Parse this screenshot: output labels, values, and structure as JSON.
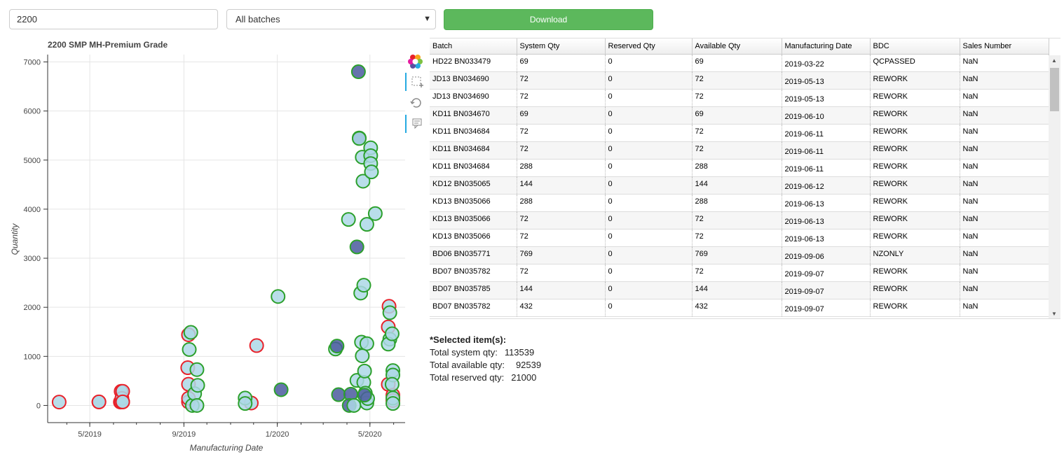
{
  "controls": {
    "search_value": "2200",
    "batch_select": "All batches",
    "download_label": "Download"
  },
  "chart_title": "2200 SMP MH-Premium Grade",
  "chart_data": {
    "type": "scatter",
    "title": "2200 SMP MH-Premium Grade",
    "xlabel": "Manufacturing Date",
    "ylabel": "Quantity",
    "x_ticks": [
      "5/2019",
      "9/2019",
      "1/2020",
      "5/2020"
    ],
    "y_ticks": [
      0,
      1000,
      2000,
      3000,
      4000,
      5000,
      6000,
      7000
    ],
    "xlim": [
      "2019-03-07",
      "2020-06-16"
    ],
    "ylim": [
      -350,
      7150
    ],
    "grid": true,
    "series": [
      {
        "style": "red",
        "points": [
          [
            "2019-03-22",
            69
          ],
          [
            "2019-05-13",
            72
          ],
          [
            "2019-05-13",
            72
          ],
          [
            "2019-06-10",
            69
          ],
          [
            "2019-06-11",
            72
          ],
          [
            "2019-06-11",
            72
          ],
          [
            "2019-06-11",
            288
          ],
          [
            "2019-06-12",
            144
          ],
          [
            "2019-06-13",
            288
          ],
          [
            "2019-06-13",
            72
          ],
          [
            "2019-06-13",
            72
          ],
          [
            "2019-09-06",
            769
          ],
          [
            "2019-09-07",
            72
          ],
          [
            "2019-09-07",
            144
          ],
          [
            "2019-09-07",
            432
          ],
          [
            "2019-09-07",
            1440
          ],
          [
            "2019-11-28",
            50
          ],
          [
            "2019-12-05",
            1220
          ],
          [
            "2020-05-26",
            2020
          ],
          [
            "2020-05-25",
            1600
          ],
          [
            "2020-05-25",
            430
          ],
          [
            "2020-05-31",
            210
          ],
          [
            "2020-05-31",
            100
          ]
        ]
      },
      {
        "style": "green",
        "points": [
          [
            "2019-09-10",
            1490
          ],
          [
            "2019-09-08",
            1140
          ],
          [
            "2019-09-12",
            0
          ],
          [
            "2019-09-15",
            240
          ],
          [
            "2019-09-18",
            730
          ],
          [
            "2019-09-19",
            410
          ],
          [
            "2019-09-18",
            0
          ],
          [
            "2019-11-20",
            150
          ],
          [
            "2019-11-20",
            40
          ],
          [
            "2020-01-02",
            2220
          ],
          [
            "2020-03-17",
            1150
          ],
          [
            "2020-04-03",
            3790
          ],
          [
            "2020-04-14",
            510
          ],
          [
            "2020-04-19",
            2290
          ],
          [
            "2020-04-20",
            1290
          ],
          [
            "2020-04-21",
            5060
          ],
          [
            "2020-04-22",
            4570
          ],
          [
            "2020-04-23",
            2450
          ],
          [
            "2020-04-23",
            470
          ],
          [
            "2020-04-24",
            700
          ],
          [
            "2020-04-25",
            250
          ],
          [
            "2020-04-27",
            3690
          ],
          [
            "2020-04-27",
            1260
          ],
          [
            "2020-04-27",
            50
          ],
          [
            "2020-04-28",
            140
          ],
          [
            "2020-04-21",
            1010
          ],
          [
            "2020-05-02",
            5250
          ],
          [
            "2020-05-02",
            5090
          ],
          [
            "2020-05-02",
            4930
          ],
          [
            "2020-05-03",
            4760
          ],
          [
            "2020-05-08",
            3910
          ],
          [
            "2020-05-27",
            1890
          ],
          [
            "2020-05-27",
            1350
          ],
          [
            "2020-05-25",
            1250
          ],
          [
            "2020-05-30",
            1460
          ],
          [
            "2020-05-31",
            710
          ],
          [
            "2020-05-31",
            620
          ],
          [
            "2020-05-30",
            430
          ],
          [
            "2020-05-31",
            150
          ],
          [
            "2020-05-31",
            40
          ]
        ]
      },
      {
        "style": "selected",
        "points": [
          [
            "2020-04-16",
            6800
          ],
          [
            "2020-04-17",
            5450
          ],
          [
            "2020-04-14",
            3230
          ],
          [
            "2020-03-19",
            1210
          ],
          [
            "2020-01-06",
            320
          ],
          [
            "2020-03-21",
            220
          ],
          [
            "2020-04-06",
            230
          ],
          [
            "2020-04-04",
            0
          ],
          [
            "2020-04-24",
            210
          ]
        ]
      },
      {
        "style": "green-front",
        "points": [
          [
            "2020-04-17",
            5440
          ],
          [
            "2020-04-10",
            0
          ]
        ]
      }
    ]
  },
  "table": {
    "columns": [
      "Batch",
      "System Qty",
      "Reserved Qty",
      "Available Qty",
      "Manufacturing Date",
      "BDC",
      "Sales Number"
    ],
    "rows": [
      [
        "HD22 BN033479",
        "69",
        "0",
        "69",
        "2019-03-22",
        "QCPASSED",
        "NaN"
      ],
      [
        "JD13 BN034690",
        "72",
        "0",
        "72",
        "2019-05-13",
        "REWORK",
        "NaN"
      ],
      [
        "JD13 BN034690",
        "72",
        "0",
        "72",
        "2019-05-13",
        "REWORK",
        "NaN"
      ],
      [
        "KD11 BN034670",
        "69",
        "0",
        "69",
        "2019-06-10",
        "REWORK",
        "NaN"
      ],
      [
        "KD11 BN034684",
        "72",
        "0",
        "72",
        "2019-06-11",
        "REWORK",
        "NaN"
      ],
      [
        "KD11 BN034684",
        "72",
        "0",
        "72",
        "2019-06-11",
        "REWORK",
        "NaN"
      ],
      [
        "KD11 BN034684",
        "288",
        "0",
        "288",
        "2019-06-11",
        "REWORK",
        "NaN"
      ],
      [
        "KD12 BN035065",
        "144",
        "0",
        "144",
        "2019-06-12",
        "REWORK",
        "NaN"
      ],
      [
        "KD13 BN035066",
        "288",
        "0",
        "288",
        "2019-06-13",
        "REWORK",
        "NaN"
      ],
      [
        "KD13 BN035066",
        "72",
        "0",
        "72",
        "2019-06-13",
        "REWORK",
        "NaN"
      ],
      [
        "KD13 BN035066",
        "72",
        "0",
        "72",
        "2019-06-13",
        "REWORK",
        "NaN"
      ],
      [
        "BD06 BN035771",
        "769",
        "0",
        "769",
        "2019-09-06",
        "NZONLY",
        "NaN"
      ],
      [
        "BD07 BN035782",
        "72",
        "0",
        "72",
        "2019-09-07",
        "REWORK",
        "NaN"
      ],
      [
        "BD07 BN035785",
        "144",
        "0",
        "144",
        "2019-09-07",
        "REWORK",
        "NaN"
      ],
      [
        "BD07 BN035782",
        "432",
        "0",
        "432",
        "2019-09-07",
        "REWORK",
        "NaN"
      ]
    ]
  },
  "summary": {
    "heading": "*Selected item(s):",
    "system_label": "Total system qty:",
    "system_value": "113539",
    "available_label": "Total available qty:",
    "available_value": "92539",
    "reserved_label": "Total reserved qty:",
    "reserved_value": "21000"
  },
  "colors": {
    "red_stroke": "#e8212a",
    "green_stroke": "#2ca02c",
    "fill": "#add8e6",
    "selected_fill": "#4a5a9e",
    "download_bg": "#5cb85c"
  },
  "icons": [
    "bokeh-logo-icon",
    "box-zoom-icon",
    "reset-icon",
    "hover-icon"
  ]
}
